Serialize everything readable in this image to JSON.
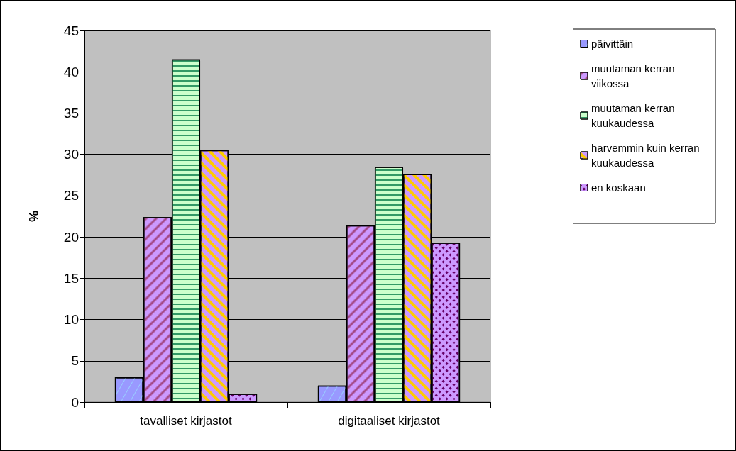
{
  "chart_data": {
    "type": "bar",
    "ylabel": "%",
    "categories": [
      "tavalliset kirjastot",
      "digitaaliset kirjastot"
    ],
    "series": [
      {
        "name": "päivittäin",
        "color": "#9999ff",
        "values": [
          3.0,
          2.0
        ]
      },
      {
        "name": "muutaman kerran viikossa",
        "color": "#cc99ff",
        "values": [
          22.4,
          21.4
        ]
      },
      {
        "name": "muutaman kerran kuukaudessa",
        "color": "#ccffcc",
        "values": [
          41.5,
          28.5
        ]
      },
      {
        "name": "harvemmin kuin kerran kuukaudessa",
        "color": "#cc99ff",
        "values": [
          30.5,
          27.6
        ]
      },
      {
        "name": "en koskaan",
        "color": "#cc99ff",
        "values": [
          1.0,
          19.3
        ]
      }
    ],
    "ylim": [
      0,
      45
    ],
    "yticks": [
      0,
      5,
      10,
      15,
      20,
      25,
      30,
      35,
      40,
      45
    ],
    "grid": "y",
    "legend": "right"
  }
}
